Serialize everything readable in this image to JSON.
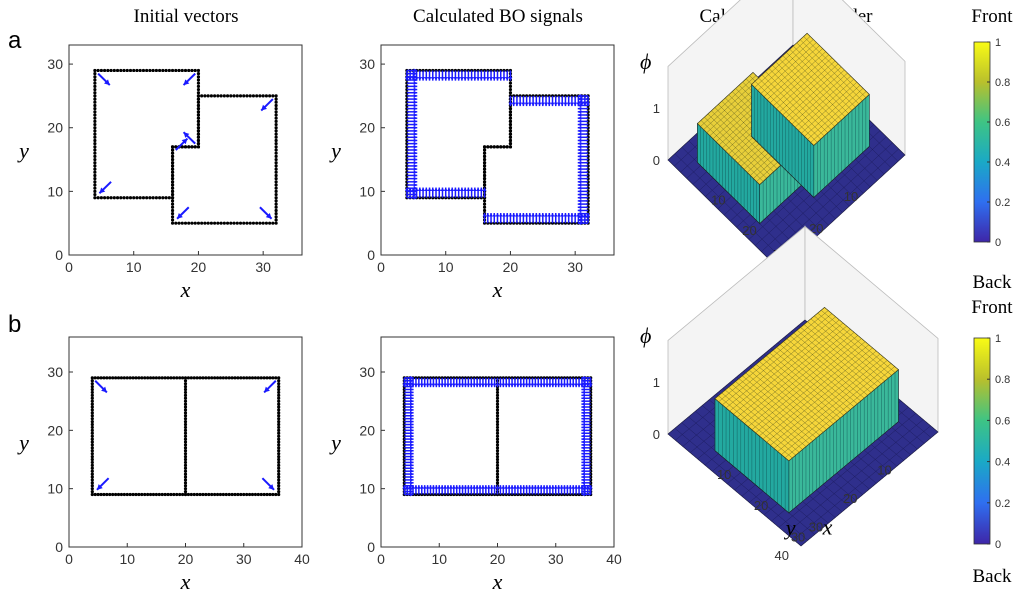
{
  "figure": {
    "row_labels": [
      "a",
      "b"
    ],
    "column_titles": [
      "Initial vectors",
      "Calculated BO signals",
      "Calculated depth order"
    ]
  },
  "colorbar": {
    "top_label": "Front",
    "bottom_label": "Back",
    "ticks": [
      "0",
      "0.2",
      "0.4",
      "0.6",
      "0.8",
      "1"
    ],
    "colors": [
      "#3e26a8",
      "#2f6ff0",
      "#1aa9c6",
      "#3ec484",
      "#b9c02c",
      "#f9fb15"
    ]
  },
  "styles": {
    "dot_color": "#000000",
    "arrow_color": "#1a1aff",
    "mesh_color": "#222222"
  },
  "chart_data": [
    {
      "id": "a-initial",
      "type": "scatter",
      "title": "Initial vectors",
      "xlabel": "x",
      "ylabel": "y",
      "xlim": [
        0,
        36
      ],
      "ylim": [
        0,
        33
      ],
      "xticks": [
        "0",
        "10",
        "20",
        "30"
      ],
      "yticks": [
        "0",
        "10",
        "20",
        "30"
      ],
      "dot_outlines": [
        [
          [
            4,
            9
          ],
          [
            16,
            9
          ],
          [
            16,
            17
          ],
          [
            20,
            17
          ],
          [
            20,
            29
          ],
          [
            4,
            29
          ],
          [
            4,
            9
          ]
        ],
        [
          [
            16,
            5
          ],
          [
            32,
            5
          ],
          [
            32,
            25
          ],
          [
            20,
            25
          ],
          [
            20,
            17
          ],
          [
            16,
            17
          ],
          [
            16,
            5
          ]
        ]
      ],
      "arrows": [
        {
          "x": 4.5,
          "y": 28.5,
          "dx": 1.8,
          "dy": -1.8
        },
        {
          "x": 19.5,
          "y": 28.5,
          "dx": -1.8,
          "dy": -1.8
        },
        {
          "x": 31.5,
          "y": 24.5,
          "dx": -1.8,
          "dy": -1.8
        },
        {
          "x": 16.5,
          "y": 16.5,
          "dx": 1.8,
          "dy": 1.8
        },
        {
          "x": 19.5,
          "y": 17.5,
          "dx": -1.8,
          "dy": 1.8
        },
        {
          "x": 6.5,
          "y": 11.5,
          "dx": -1.8,
          "dy": -1.8
        },
        {
          "x": 18.5,
          "y": 7.5,
          "dx": -1.8,
          "dy": -1.8
        },
        {
          "x": 29.5,
          "y": 7.5,
          "dx": 1.8,
          "dy": -1.8
        }
      ]
    },
    {
      "id": "a-bo",
      "type": "scatter",
      "title": "Calculated BO signals",
      "xlabel": "x",
      "ylabel": "y",
      "xlim": [
        0,
        36
      ],
      "ylim": [
        0,
        33
      ],
      "xticks": [
        "0",
        "10",
        "20",
        "30"
      ],
      "yticks": [
        "0",
        "10",
        "20",
        "30"
      ],
      "dot_outlines": [
        [
          [
            4,
            9
          ],
          [
            16,
            9
          ],
          [
            16,
            17
          ],
          [
            20,
            17
          ],
          [
            20,
            29
          ],
          [
            4,
            29
          ],
          [
            4,
            9
          ]
        ],
        [
          [
            16,
            5
          ],
          [
            32,
            5
          ],
          [
            32,
            25
          ],
          [
            20,
            25
          ],
          [
            20,
            17
          ],
          [
            16,
            17
          ],
          [
            16,
            5
          ]
        ]
      ],
      "bo_edges": [
        {
          "from": [
            4,
            29
          ],
          "to": [
            20,
            29
          ],
          "dx": 0,
          "dy": -1
        },
        {
          "from": [
            4,
            9
          ],
          "to": [
            16,
            9
          ],
          "dx": 0,
          "dy": 1
        },
        {
          "from": [
            4,
            9
          ],
          "to": [
            4,
            29
          ],
          "dx": 1,
          "dy": 0
        },
        {
          "from": [
            20,
            25
          ],
          "to": [
            32,
            25
          ],
          "dx": 0,
          "dy": -1
        },
        {
          "from": [
            16,
            5
          ],
          "to": [
            32,
            5
          ],
          "dx": 0,
          "dy": 1
        },
        {
          "from": [
            32,
            5
          ],
          "to": [
            32,
            25
          ],
          "dx": -1,
          "dy": 0
        }
      ]
    },
    {
      "id": "a-depth",
      "type": "surface",
      "title": "Calculated depth order",
      "xlabel": "x",
      "ylabel": "y",
      "zlabel": "ϕ",
      "xticks": [
        "10",
        "20",
        "30"
      ],
      "yticks": [
        "10",
        "20",
        "30"
      ],
      "zticks": [
        "0",
        "1"
      ],
      "xlim": [
        0,
        36
      ],
      "ylim": [
        0,
        36
      ],
      "plateaus": [
        {
          "x": [
            16,
            32
          ],
          "y": [
            5,
            25
          ],
          "z": 0.75
        },
        {
          "x": [
            4,
            20
          ],
          "y": [
            9,
            29
          ],
          "z": 1.0
        }
      ]
    },
    {
      "id": "b-initial",
      "type": "scatter",
      "xlabel": "x",
      "ylabel": "y",
      "xlim": [
        0,
        40
      ],
      "ylim": [
        0,
        36
      ],
      "xticks": [
        "0",
        "10",
        "20",
        "30",
        "40"
      ],
      "yticks": [
        "0",
        "10",
        "20",
        "30"
      ],
      "dot_outlines": [
        [
          [
            4,
            9
          ],
          [
            36,
            9
          ],
          [
            36,
            29
          ],
          [
            4,
            29
          ],
          [
            4,
            9
          ]
        ],
        [
          [
            20,
            9
          ],
          [
            20,
            29
          ]
        ]
      ],
      "arrows": [
        {
          "x": 4.5,
          "y": 28.5,
          "dx": 2.0,
          "dy": -2.0
        },
        {
          "x": 35.5,
          "y": 28.5,
          "dx": -2.0,
          "dy": -2.0
        },
        {
          "x": 6.8,
          "y": 11.8,
          "dx": -2.0,
          "dy": -2.0
        },
        {
          "x": 33.2,
          "y": 11.8,
          "dx": 2.0,
          "dy": -2.0
        }
      ]
    },
    {
      "id": "b-bo",
      "type": "scatter",
      "xlabel": "x",
      "ylabel": "y",
      "xlim": [
        0,
        40
      ],
      "ylim": [
        0,
        36
      ],
      "xticks": [
        "0",
        "10",
        "20",
        "30",
        "40"
      ],
      "yticks": [
        "0",
        "10",
        "20",
        "30"
      ],
      "dot_outlines": [
        [
          [
            4,
            9
          ],
          [
            36,
            9
          ],
          [
            36,
            29
          ],
          [
            4,
            29
          ],
          [
            4,
            9
          ]
        ],
        [
          [
            20,
            9
          ],
          [
            20,
            29
          ]
        ]
      ],
      "bo_edges": [
        {
          "from": [
            4,
            29
          ],
          "to": [
            36,
            29
          ],
          "dx": 0,
          "dy": -1
        },
        {
          "from": [
            4,
            9
          ],
          "to": [
            36,
            9
          ],
          "dx": 0,
          "dy": 1
        },
        {
          "from": [
            4,
            9
          ],
          "to": [
            4,
            29
          ],
          "dx": 1,
          "dy": 0
        },
        {
          "from": [
            36,
            9
          ],
          "to": [
            36,
            29
          ],
          "dx": -1,
          "dy": 0
        }
      ]
    },
    {
      "id": "b-depth",
      "type": "surface",
      "xlabel": "x",
      "ylabel": "y",
      "zlabel": "ϕ",
      "xticks": [
        "10",
        "20",
        "30",
        "40"
      ],
      "yticks": [
        "10",
        "20",
        "30"
      ],
      "zticks": [
        "0",
        "1"
      ],
      "xlim": [
        0,
        40
      ],
      "ylim": [
        0,
        36
      ],
      "plateaus": [
        {
          "x": [
            4,
            36
          ],
          "y": [
            9,
            29
          ],
          "z": 1.0
        }
      ]
    }
  ]
}
